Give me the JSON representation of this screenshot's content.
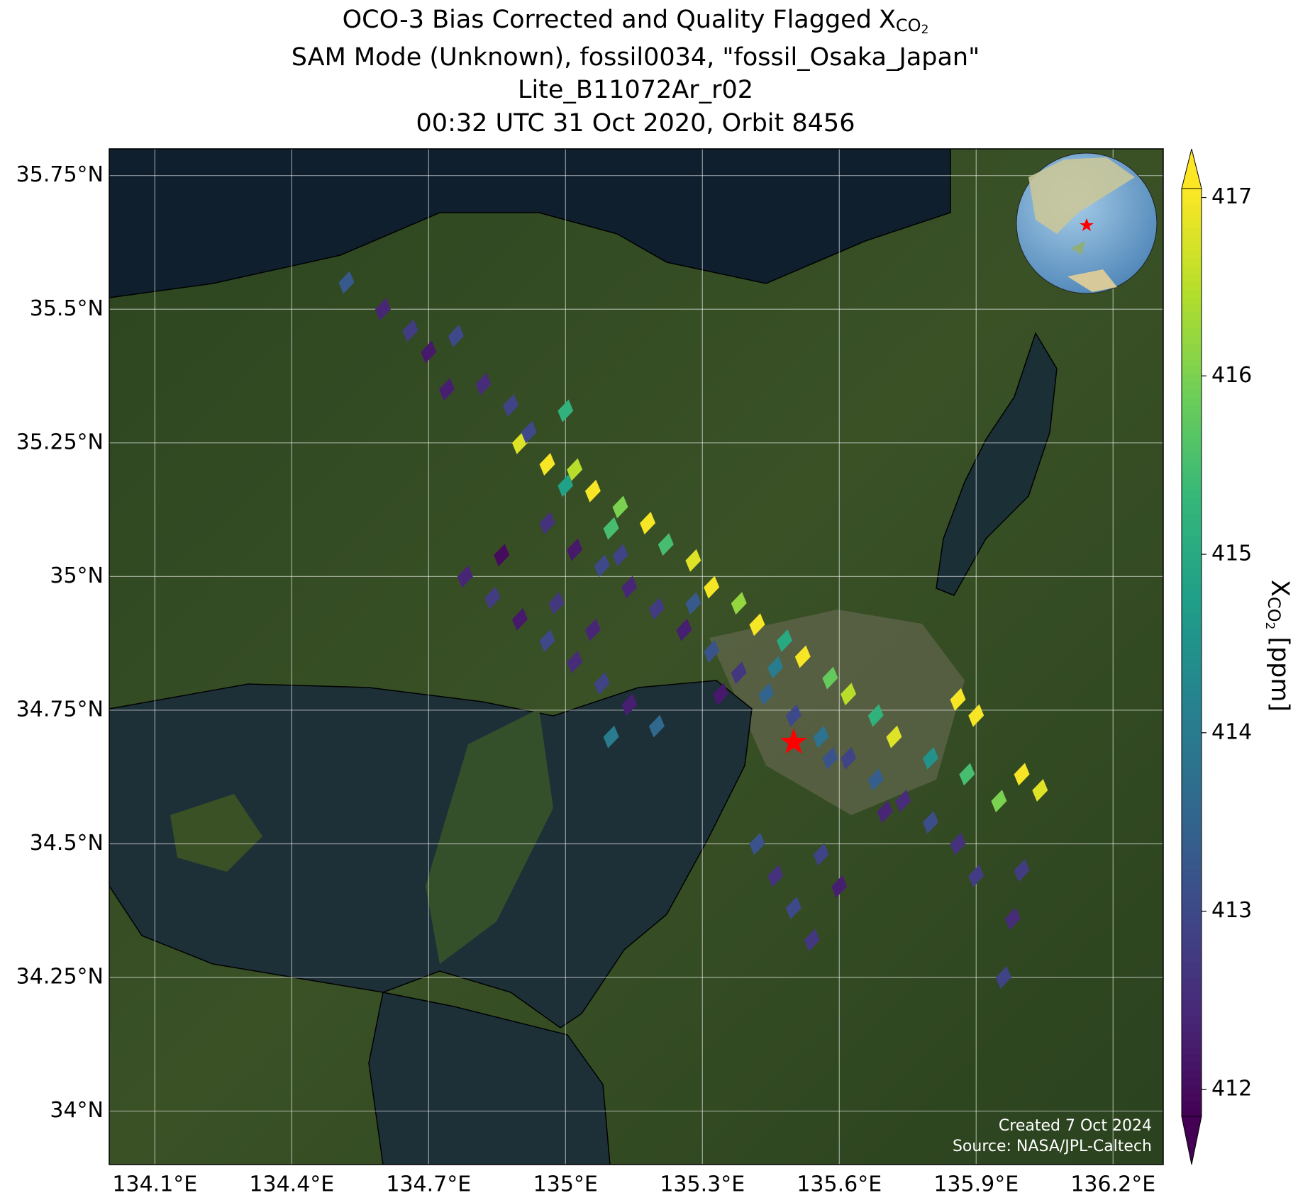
{
  "chart_data": {
    "type": "map",
    "title_prefix": "OCO-3 Bias Corrected and Quality Flagged",
    "symbol": "X",
    "species": "CO",
    "species_subscript": "2",
    "title_lines": [
      "SAM Mode (Unknown), fossil0034, \"fossil_Osaka_Japan\"",
      "Lite_B11072Ar_r02",
      "00:32 UTC 31 Oct 2020, Orbit 8456"
    ],
    "xlim": [
      134.0,
      136.31
    ],
    "ylim": [
      33.9,
      35.8
    ],
    "xticks": [
      {
        "value": 134.1,
        "label": "134.1°E"
      },
      {
        "value": 134.4,
        "label": "134.4°E"
      },
      {
        "value": 134.7,
        "label": "134.7°E"
      },
      {
        "value": 135.0,
        "label": "135°E"
      },
      {
        "value": 135.3,
        "label": "135.3°E"
      },
      {
        "value": 135.6,
        "label": "135.6°E"
      },
      {
        "value": 135.9,
        "label": "135.9°E"
      },
      {
        "value": 136.2,
        "label": "136.2°E"
      }
    ],
    "yticks": [
      {
        "value": 34.0,
        "label": "34°N"
      },
      {
        "value": 34.25,
        "label": "34.25°N"
      },
      {
        "value": 34.5,
        "label": "34.5°N"
      },
      {
        "value": 34.75,
        "label": "34.75°N"
      },
      {
        "value": 35.0,
        "label": "35°N"
      },
      {
        "value": 35.25,
        "label": "35.25°N"
      },
      {
        "value": 35.5,
        "label": "35.5°N"
      },
      {
        "value": 35.75,
        "label": "35.75°N"
      }
    ],
    "grid": true,
    "colormap": "viridis",
    "clim": [
      411.85,
      417.05
    ],
    "cticks": [
      412,
      413,
      414,
      415,
      416,
      417
    ],
    "colorbar_units": "[ppm]",
    "target": {
      "lon": 135.5,
      "lat": 34.69,
      "color": "#ff0000"
    },
    "soundings": {
      "lon": [
        134.9,
        134.96,
        135.02,
        135.06,
        135.12,
        135.18,
        135.22,
        135.28,
        135.32,
        135.38,
        135.42,
        135.48,
        135.52,
        135.58,
        135.62,
        135.68,
        135.72,
        135.8,
        135.88,
        136.0,
        136.04,
        135.95,
        135.9,
        135.0,
        135.1,
        134.96,
        135.02,
        135.08,
        135.14,
        135.2,
        135.26,
        135.32,
        135.38,
        135.44,
        135.5,
        135.56,
        135.62,
        135.68,
        135.74,
        135.8,
        135.86,
        135.9,
        135.12,
        135.28,
        135.46,
        135.58,
        135.7,
        135.34,
        134.78,
        134.84,
        134.9,
        134.96,
        135.02,
        135.08,
        135.14,
        135.2,
        135.1,
        134.86,
        134.98,
        135.06,
        134.52,
        134.6,
        134.66,
        134.7,
        134.76,
        134.82,
        134.88,
        134.92,
        134.74,
        135.0,
        135.42,
        135.46,
        135.5,
        135.54,
        135.6,
        135.56,
        136.0,
        135.98,
        135.96,
        135.86
      ],
      "lat": [
        35.25,
        35.21,
        35.2,
        35.16,
        35.13,
        35.1,
        35.06,
        35.03,
        34.98,
        34.95,
        34.91,
        34.88,
        34.85,
        34.81,
        34.78,
        34.74,
        34.7,
        34.66,
        34.63,
        34.63,
        34.6,
        34.58,
        34.74,
        35.17,
        35.09,
        35.1,
        35.05,
        35.02,
        34.98,
        34.94,
        34.9,
        34.86,
        34.82,
        34.78,
        34.74,
        34.7,
        34.66,
        34.62,
        34.58,
        34.54,
        34.5,
        34.44,
        35.04,
        34.95,
        34.83,
        34.66,
        34.56,
        34.78,
        35.0,
        34.96,
        34.92,
        34.88,
        34.84,
        34.8,
        34.76,
        34.72,
        34.7,
        35.04,
        34.95,
        34.9,
        35.55,
        35.5,
        35.46,
        35.42,
        35.45,
        35.36,
        35.32,
        35.27,
        35.35,
        35.31,
        34.5,
        34.44,
        34.38,
        34.32,
        34.42,
        34.48,
        34.45,
        34.36,
        34.25,
        34.77
      ],
      "xco2": [
        416.8,
        417.0,
        416.5,
        417.0,
        416.0,
        417.0,
        415.5,
        416.8,
        417.0,
        416.2,
        417.0,
        415.0,
        417.0,
        415.8,
        416.5,
        415.2,
        416.8,
        414.5,
        415.5,
        417.0,
        416.8,
        416.0,
        417.0,
        414.8,
        415.5,
        412.6,
        412.2,
        413.0,
        412.4,
        412.8,
        412.3,
        413.2,
        412.7,
        413.5,
        413.0,
        413.8,
        412.9,
        413.4,
        412.5,
        413.1,
        412.6,
        412.8,
        412.9,
        413.3,
        414.0,
        413.2,
        412.4,
        412.2,
        412.4,
        412.8,
        412.2,
        413.0,
        412.5,
        412.9,
        412.3,
        413.6,
        414.0,
        412.0,
        412.7,
        412.4,
        413.3,
        412.4,
        412.8,
        412.2,
        413.0,
        412.5,
        412.9,
        413.0,
        412.3,
        415.2,
        413.2,
        412.6,
        413.0,
        412.7,
        412.3,
        412.9,
        412.8,
        412.5,
        412.9,
        417.0
      ]
    },
    "credits": [
      "Created 7 Oct 2024",
      "Source: NASA/JPL-Caltech"
    ]
  }
}
